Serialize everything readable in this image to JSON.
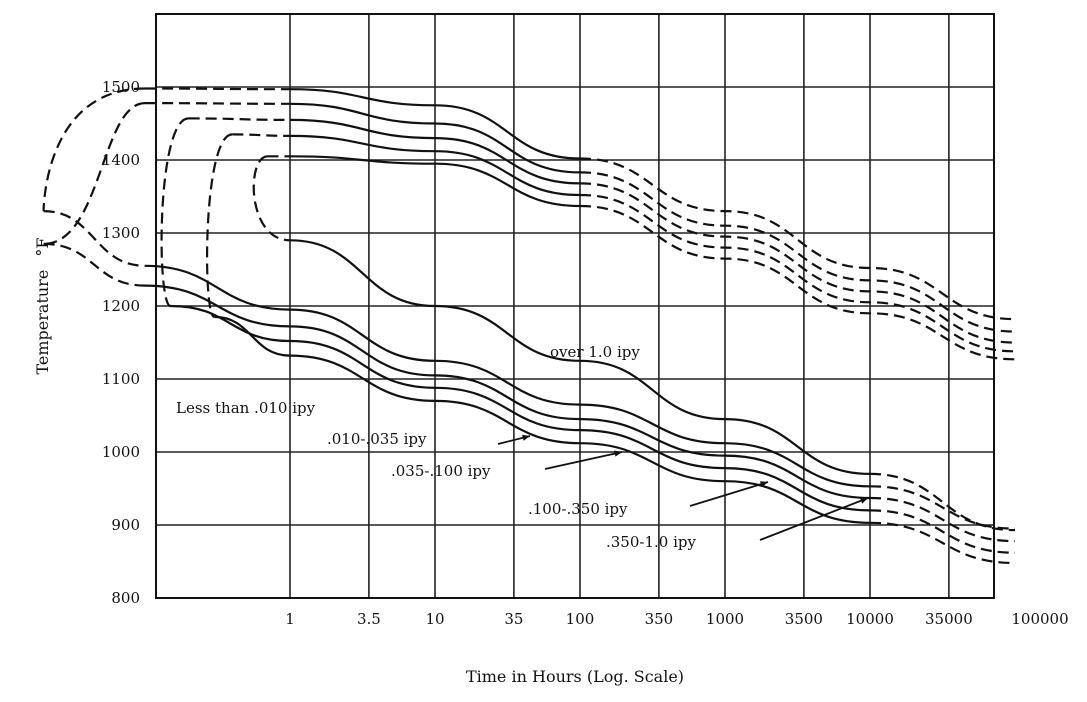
{
  "chart_data": {
    "type": "line",
    "title": "",
    "xlabel": "Time in Hours (Log. Scale)",
    "ylabel": "Temperature",
    "ylabel_unit": "°F",
    "x_scale": "log",
    "ylim": [
      800,
      1500
    ],
    "y_ticks": [
      "800",
      "900",
      "1000",
      "1100",
      "1200",
      "1300",
      "1400",
      "1500"
    ],
    "x_ticks": [
      "1",
      "3.5",
      "10",
      "35",
      "100",
      "350",
      "1000",
      "3500",
      "10000",
      "35000",
      "100000"
    ],
    "grid": true,
    "line_style_note": "solid = measured, dashed = extrapolated",
    "series": [
      {
        "region_boundary": 1,
        "upper_branch": [
          [
            0.1,
            1498
          ],
          [
            1,
            1497
          ],
          [
            10,
            1475
          ],
          [
            100,
            1402
          ],
          [
            1000,
            1330
          ],
          [
            10000,
            1252
          ],
          [
            100000,
            1182
          ]
        ],
        "lower_branch": [
          [
            0.02,
            1330
          ],
          [
            0.1,
            1255
          ],
          [
            1,
            1195
          ],
          [
            10,
            1125
          ],
          [
            100,
            1065
          ],
          [
            1000,
            1012
          ],
          [
            10000,
            953
          ],
          [
            100000,
            895
          ]
        ]
      },
      {
        "region_boundary": 2,
        "upper_branch": [
          [
            0.1,
            1478
          ],
          [
            1,
            1477
          ],
          [
            10,
            1450
          ],
          [
            100,
            1383
          ],
          [
            1000,
            1310
          ],
          [
            10000,
            1235
          ],
          [
            100000,
            1165
          ]
        ],
        "lower_branch": [
          [
            0.02,
            1285
          ],
          [
            0.1,
            1228
          ],
          [
            1,
            1172
          ],
          [
            10,
            1105
          ],
          [
            100,
            1045
          ],
          [
            1000,
            995
          ],
          [
            10000,
            937
          ],
          [
            100000,
            878
          ]
        ]
      },
      {
        "region_boundary": 3,
        "upper_branch": [
          [
            0.2,
            1457
          ],
          [
            1,
            1455
          ],
          [
            10,
            1430
          ],
          [
            100,
            1368
          ],
          [
            1000,
            1295
          ],
          [
            10000,
            1220
          ],
          [
            100000,
            1150
          ]
        ],
        "lower_branch": [
          [
            0.15,
            1200
          ],
          [
            1,
            1152
          ],
          [
            10,
            1088
          ],
          [
            100,
            1030
          ],
          [
            1000,
            978
          ],
          [
            10000,
            920
          ],
          [
            100000,
            862
          ]
        ]
      },
      {
        "region_boundary": 4,
        "upper_branch": [
          [
            0.4,
            1435
          ],
          [
            1,
            1433
          ],
          [
            10,
            1412
          ],
          [
            100,
            1352
          ],
          [
            1000,
            1280
          ],
          [
            10000,
            1205
          ],
          [
            100000,
            1138
          ]
        ],
        "lower_branch": [
          [
            0.3,
            1185
          ],
          [
            1,
            1132
          ],
          [
            10,
            1070
          ],
          [
            100,
            1012
          ],
          [
            1000,
            960
          ],
          [
            10000,
            903
          ],
          [
            100000,
            848
          ]
        ]
      },
      {
        "region_boundary": 5,
        "upper_branch": [
          [
            0.7,
            1405
          ],
          [
            1,
            1405
          ],
          [
            10,
            1395
          ],
          [
            100,
            1337
          ],
          [
            1000,
            1265
          ],
          [
            10000,
            1190
          ],
          [
            100000,
            1127
          ]
        ],
        "lower_branch": [
          [
            1,
            1290
          ],
          [
            10,
            1200
          ],
          [
            100,
            1125
          ],
          [
            1000,
            1045
          ],
          [
            10000,
            970
          ],
          [
            100000,
            893
          ]
        ]
      }
    ],
    "annotations": {
      "over": "over 1.0 ipy",
      "less_than": "Less than .010 ipy",
      "r010_035": ".010-.035 ipy",
      "r035_100": ".035-.100 ipy",
      "r100_350": ".100-.350 ipy",
      "r350_1": ".350-1.0 ipy"
    }
  }
}
